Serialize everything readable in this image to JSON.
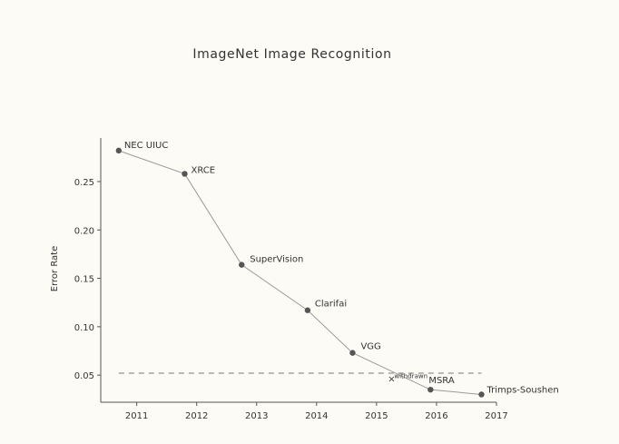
{
  "chart_data": {
    "type": "line",
    "title": "ImageNet Image Recognition",
    "xlabel": "",
    "ylabel": "Error Rate",
    "xlim": [
      2010.4,
      2017.0
    ],
    "ylim": [
      0.022,
      0.295
    ],
    "x_ticks": [
      "2011",
      "2012",
      "2013",
      "2014",
      "2015",
      "2016",
      "2017"
    ],
    "y_ticks": [
      "0.05",
      "0.10",
      "0.15",
      "0.20",
      "0.25"
    ],
    "grid": false,
    "series": [
      {
        "points": [
          {
            "x": 2010.7,
            "y": 0.282,
            "label": "NEC UIUC"
          },
          {
            "x": 2011.8,
            "y": 0.258,
            "label": "XRCE"
          },
          {
            "x": 2012.75,
            "y": 0.164,
            "label": "SuperVision"
          },
          {
            "x": 2013.85,
            "y": 0.117,
            "label": "Clarifai"
          },
          {
            "x": 2014.6,
            "y": 0.073,
            "label": "VGG"
          },
          {
            "x": 2015.9,
            "y": 0.035,
            "label": "MSRA"
          },
          {
            "x": 2016.75,
            "y": 0.03,
            "label": "Trimps-Soushen"
          }
        ]
      }
    ],
    "withdrawn": {
      "x": 2015.25,
      "y": 0.046,
      "label": "withdrawn"
    },
    "reference_line": {
      "y": 0.052
    },
    "colors": {
      "line": "#9a9a9a",
      "point": "#555555",
      "axis": "#555555",
      "dash": "#777777"
    }
  }
}
